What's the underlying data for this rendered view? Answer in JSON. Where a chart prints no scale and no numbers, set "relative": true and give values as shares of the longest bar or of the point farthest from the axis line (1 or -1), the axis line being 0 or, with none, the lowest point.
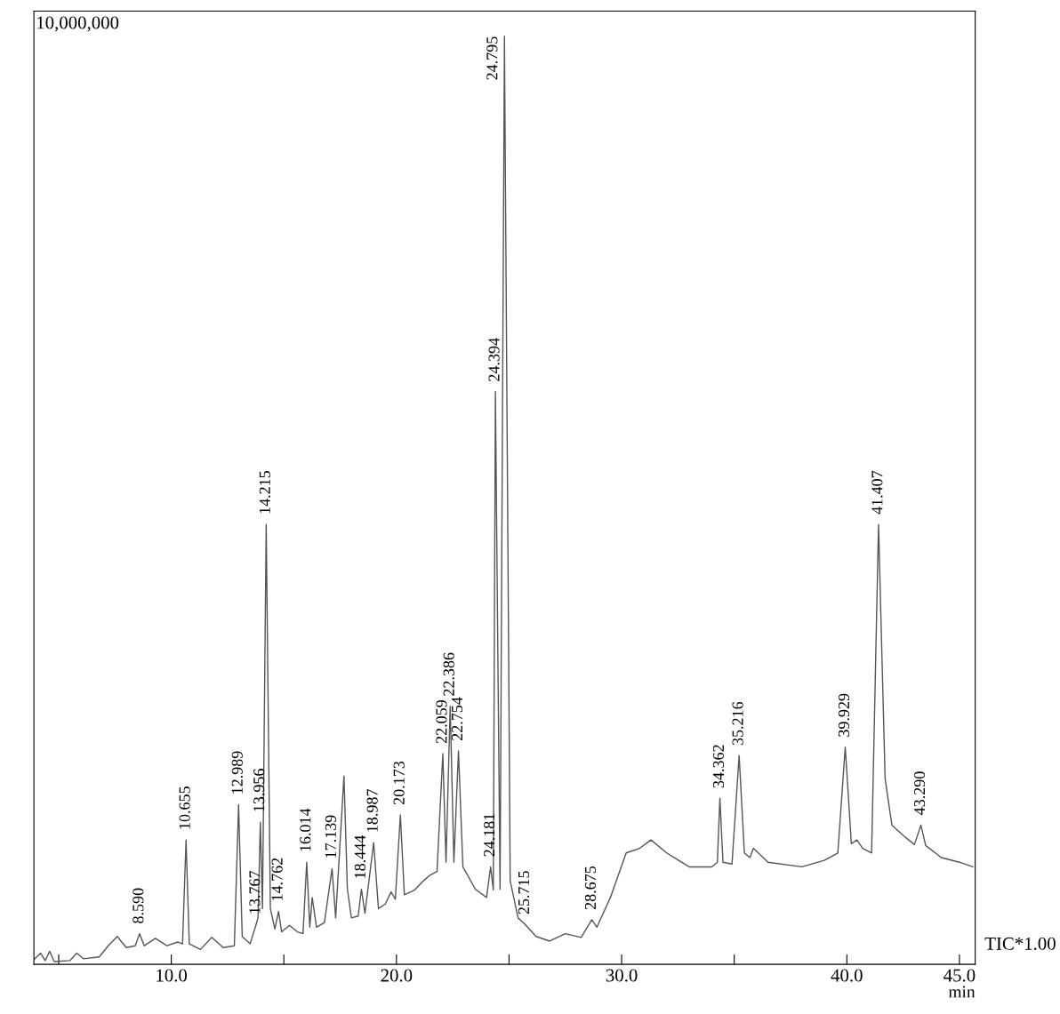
{
  "chart_data": {
    "type": "line",
    "relative": true,
    "xlabel": "min",
    "color": "#555555",
    "grid": false,
    "legend": false,
    "marker": "none",
    "line_style": "solid",
    "xlim": [
      3.9,
      45.7
    ],
    "xticks": [
      {
        "value": 5,
        "label": null
      },
      {
        "value": 10,
        "label": "10.0"
      },
      {
        "value": 15,
        "label": null
      },
      {
        "value": 20,
        "label": "20.0"
      },
      {
        "value": 25,
        "label": null
      },
      {
        "value": 30,
        "label": "30.0"
      },
      {
        "value": 35,
        "label": null
      },
      {
        "value": 40,
        "label": "40.0"
      },
      {
        "value": 45,
        "label": "45.0"
      }
    ],
    "x": [
      3.9,
      4.2,
      4.4,
      4.6,
      4.8,
      5.5,
      5.8,
      6.1,
      6.8,
      7.2,
      7.6,
      8.0,
      8.4,
      8.59,
      8.8,
      9.3,
      9.8,
      10.3,
      10.5,
      10.655,
      10.8,
      11.3,
      11.8,
      12.3,
      12.8,
      12.989,
      13.15,
      13.5,
      13.767,
      13.85,
      13.956,
      14.05,
      14.215,
      14.4,
      14.6,
      14.762,
      14.9,
      15.249,
      15.6,
      15.85,
      16.014,
      16.15,
      16.258,
      16.45,
      16.8,
      17.139,
      17.3,
      17.669,
      17.82,
      18.0,
      18.3,
      18.444,
      18.6,
      18.987,
      19.2,
      19.5,
      19.764,
      19.95,
      20.173,
      20.35,
      20.8,
      21.2,
      21.488,
      21.8,
      22.059,
      22.2,
      22.386,
      22.55,
      22.754,
      22.95,
      23.5,
      24.0,
      24.181,
      24.3,
      24.394,
      24.6,
      24.795,
      25.05,
      25.4,
      25.715,
      26.2,
      26.8,
      27.5,
      28.2,
      28.675,
      28.9,
      29.5,
      30.2,
      30.8,
      31.3,
      32.0,
      33.0,
      34.0,
      34.25,
      34.362,
      34.5,
      34.9,
      35.216,
      35.45,
      35.7,
      35.85,
      36.5,
      38.0,
      39.0,
      39.6,
      39.929,
      40.2,
      40.45,
      40.7,
      41.1,
      41.407,
      41.7,
      42.0,
      42.5,
      43.0,
      43.29,
      43.5,
      44.2,
      45.0,
      45.6
    ],
    "values": [
      0.005,
      0.012,
      0.004,
      0.014,
      0.003,
      0.004,
      0.012,
      0.006,
      0.008,
      0.02,
      0.03,
      0.018,
      0.02,
      0.033,
      0.02,
      0.028,
      0.02,
      0.024,
      0.022,
      0.134,
      0.022,
      0.016,
      0.029,
      0.018,
      0.02,
      0.172,
      0.03,
      0.022,
      0.043,
      0.05,
      0.153,
      0.06,
      0.474,
      0.06,
      0.038,
      0.057,
      0.035,
      0.042,
      0.035,
      0.033,
      0.11,
      0.04,
      0.072,
      0.04,
      0.045,
      0.103,
      0.05,
      0.203,
      0.081,
      0.05,
      0.052,
      0.081,
      0.055,
      0.131,
      0.06,
      0.065,
      0.078,
      0.07,
      0.161,
      0.075,
      0.08,
      0.09,
      0.096,
      0.1,
      0.227,
      0.11,
      0.278,
      0.11,
      0.23,
      0.105,
      0.081,
      0.072,
      0.105,
      0.08,
      0.617,
      0.081,
      1.0,
      0.09,
      0.05,
      0.043,
      0.03,
      0.025,
      0.033,
      0.029,
      0.048,
      0.04,
      0.072,
      0.12,
      0.125,
      0.134,
      0.12,
      0.105,
      0.105,
      0.11,
      0.179,
      0.11,
      0.108,
      0.225,
      0.12,
      0.115,
      0.125,
      0.11,
      0.105,
      0.112,
      0.12,
      0.234,
      0.13,
      0.134,
      0.125,
      0.12,
      0.474,
      0.2,
      0.15,
      0.139,
      0.129,
      0.15,
      0.128,
      0.115,
      0.11,
      0.105
    ],
    "annotations": [
      "10,000,000",
      "TIC*1.00",
      {
        "text": "8.590",
        "x": 8.59,
        "y": 0.033
      },
      {
        "text": "10.655",
        "x": 10.655,
        "y": 0.134
      },
      {
        "text": "12.989",
        "x": 12.989,
        "y": 0.172
      },
      {
        "text": "13.767",
        "x": 13.767,
        "y": 0.043
      },
      {
        "text": "13.956",
        "x": 13.956,
        "y": 0.153
      },
      {
        "text": "14.215",
        "x": 14.215,
        "y": 0.474
      },
      {
        "text": "14.762",
        "x": 14.762,
        "y": 0.057
      },
      {
        "text": "16.014",
        "x": 16.014,
        "y": 0.11
      },
      {
        "text": "17.139",
        "x": 17.139,
        "y": 0.103
      },
      {
        "text": "18.444",
        "x": 18.444,
        "y": 0.081
      },
      {
        "text": "18.987",
        "x": 18.987,
        "y": 0.131
      },
      {
        "text": "20.173",
        "x": 20.173,
        "y": 0.161
      },
      {
        "text": "22.059",
        "x": 22.059,
        "y": 0.227
      },
      {
        "text": "22.386",
        "x": 22.386,
        "y": 0.278
      },
      {
        "text": "22.754",
        "x": 22.754,
        "y": 0.23
      },
      {
        "text": "24.181",
        "x": 24.181,
        "y": 0.105
      },
      {
        "text": "24.394",
        "x": 24.394,
        "y": 0.617
      },
      {
        "text": "24.795",
        "x": 24.795,
        "y": 1.0
      },
      {
        "text": "25.715",
        "x": 25.715,
        "y": 0.043
      },
      {
        "text": "28.675",
        "x": 28.675,
        "y": 0.048
      },
      {
        "text": "34.362",
        "x": 34.362,
        "y": 0.179
      },
      {
        "text": "35.216",
        "x": 35.216,
        "y": 0.225
      },
      {
        "text": "39.929",
        "x": 39.929,
        "y": 0.234
      },
      {
        "text": "41.407",
        "x": 41.407,
        "y": 0.474
      },
      {
        "text": "43.290",
        "x": 43.29,
        "y": 0.15
      }
    ]
  }
}
